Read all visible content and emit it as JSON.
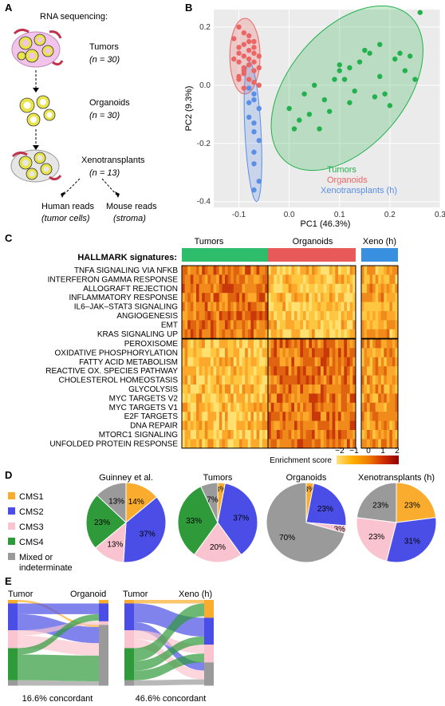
{
  "panels": {
    "A": {
      "letter": "A",
      "title": "RNA sequencing:",
      "stages": [
        {
          "name": "Tumors",
          "n": "(n = 30)"
        },
        {
          "name": "Organoids",
          "n": "(n = 30)"
        },
        {
          "name": "Xenotransplants",
          "n": "(n = 13)"
        }
      ],
      "reads": [
        {
          "name": "Human reads",
          "sub": "(tumor cells)"
        },
        {
          "name": "Mouse reads",
          "sub": "(stroma)"
        }
      ]
    },
    "B": {
      "letter": "B"
    },
    "C": {
      "letter": "C",
      "heading": "HALLMARK signatures:",
      "groups": [
        "Tumors",
        "Organoids",
        "Xeno (h)"
      ],
      "signatures_top": [
        "TNFA SIGNALING VIA NFKB",
        "INTERFERON GAMMA RESPONSE",
        "ALLOGRAFT REJECTION",
        "INFLAMMATORY RESPONSE",
        "IL6–JAK–STAT3 SIGNALING",
        "ANGIOGENESIS",
        "EMT",
        "KRAS SIGNALING UP"
      ],
      "signatures_bottom": [
        "PEROXISOME",
        "OXIDATIVE PHOSPHORYLATION",
        "FATTY ACID METABOLISM",
        "REACTIVE OX. SPECIES PATHWAY",
        "CHOLESTEROL HOMEOSTASIS",
        "GLYCOLYSIS",
        "MYC TARGETS V2",
        "MYC TARGETS V1",
        "E2F TARGETS",
        "DNA REPAIR",
        "MTORC1 SIGNALING",
        "UNFOLDED PROTEIN RESPONSE"
      ],
      "colorbar": {
        "label": "Enrichment score",
        "ticks": [
          "−2",
          "−1",
          "0",
          "1",
          "2"
        ],
        "colors": [
          "#ffe080",
          "#ffb000",
          "#f08000",
          "#d03000",
          "#900000"
        ]
      },
      "group_colors": [
        "#2ebd6b",
        "#e85a5a",
        "#3a90e0"
      ]
    },
    "D": {
      "letter": "D",
      "legend": [
        "CMS1",
        "CMS2",
        "CMS3",
        "CMS4",
        "Mixed or",
        "indeterminate"
      ]
    },
    "E": {
      "letter": "E",
      "left": {
        "a": "Tumor",
        "b": "Organoid",
        "caption": "16.6% concordant"
      },
      "right": {
        "a": "Tumor",
        "b": "Xeno (h)",
        "caption": "46.6% concordant"
      }
    }
  },
  "colors": {
    "cms1": "#f9ac2e",
    "cms2": "#4b4ee6",
    "cms3": "#f9c4cf",
    "cms4": "#2f9a3a",
    "mixed": "#9a9a9a",
    "tumors": "#22b14c",
    "organoids": "#ec6565",
    "xeno": "#5b8ee6"
  },
  "chart_data": [
    {
      "type": "scatter",
      "xlabel": "PC1 (46.3%)",
      "ylabel": "PC2 (9.3%)",
      "xlim": [
        -0.15,
        0.3
      ],
      "ylim": [
        -0.42,
        0.26
      ],
      "xticks": [
        "-0.1",
        "0.0",
        "0.1",
        "0.2",
        "0.3"
      ],
      "yticks": [
        "0.2",
        "0.0",
        "-0.2",
        "-0.4"
      ],
      "xtick_values": [
        -0.1,
        0.0,
        0.1,
        0.2,
        0.3
      ],
      "ytick_values": [
        0.2,
        0.0,
        -0.2,
        -0.4
      ],
      "grid": true,
      "legend_position": "bottom-right",
      "series": [
        {
          "name": "Tumors",
          "color": "#22b14c",
          "x": [
            0.26,
            0.22,
            0.23,
            0.21,
            0.24,
            0.19,
            0.2,
            0.18,
            0.15,
            0.14,
            0.12,
            0.1,
            0.11,
            0.13,
            0.16,
            0.09,
            0.07,
            0.05,
            0.03,
            0.0,
            0.02,
            0.06,
            0.08,
            0.17,
            0.25,
            0.18,
            0.04,
            0.12,
            0.1,
            0.01
          ],
          "y": [
            0.25,
            0.11,
            0.05,
            0.09,
            0.1,
            -0.03,
            -0.07,
            0.14,
            0.12,
            0.08,
            0.06,
            0.07,
            0.02,
            -0.02,
            0.11,
            0.02,
            -0.05,
            0.0,
            -0.03,
            -0.08,
            -0.12,
            -0.15,
            -0.09,
            -0.04,
            0.02,
            0.03,
            -0.1,
            -0.06,
            0.05,
            -0.15
          ]
        },
        {
          "name": "Organoids",
          "color": "#ec6565",
          "x": [
            -0.1,
            -0.09,
            -0.08,
            -0.07,
            -0.09,
            -0.1,
            -0.08,
            -0.07,
            -0.09,
            -0.11,
            -0.1,
            -0.08,
            -0.06,
            -0.07,
            -0.09,
            -0.1,
            -0.08,
            -0.07,
            -0.06,
            -0.09,
            -0.11,
            -0.1,
            -0.08,
            -0.07,
            -0.09,
            -0.1,
            -0.08,
            -0.06,
            -0.09,
            -0.07
          ],
          "y": [
            0.2,
            0.18,
            0.17,
            0.15,
            0.14,
            0.13,
            0.12,
            0.11,
            0.1,
            0.09,
            0.08,
            0.07,
            0.06,
            0.05,
            0.04,
            0.03,
            0.02,
            0.01,
            0.0,
            -0.01,
            0.16,
            0.11,
            0.09,
            0.13,
            0.06,
            0.02,
            0.15,
            0.1,
            0.05,
            0.08
          ]
        },
        {
          "name": "Xenotransplants (h)",
          "color": "#5b8ee6",
          "x": [
            -0.08,
            -0.07,
            -0.07,
            -0.06,
            -0.08,
            -0.07,
            -0.07,
            -0.06,
            -0.07,
            -0.07,
            -0.06,
            -0.07,
            -0.08
          ],
          "y": [
            -0.01,
            -0.03,
            -0.05,
            -0.08,
            -0.11,
            -0.13,
            -0.16,
            -0.19,
            -0.23,
            -0.27,
            -0.33,
            -0.36,
            -0.06
          ]
        }
      ]
    },
    {
      "type": "pie",
      "title": "Guinney et al.",
      "categories": [
        "CMS1",
        "CMS2",
        "CMS3",
        "CMS4",
        "Mixed or indeterminate"
      ],
      "values": [
        14,
        37,
        13,
        23,
        13
      ],
      "labels": [
        "14%",
        "37%",
        "13%",
        "23%",
        "13%"
      ]
    },
    {
      "type": "pie",
      "title": "Tumors",
      "categories": [
        "CMS1",
        "CMS2",
        "CMS3",
        "CMS4",
        "Mixed or indeterminate"
      ],
      "values": [
        3,
        37,
        20,
        33,
        7
      ],
      "labels": [
        "3%",
        "37%",
        "20%",
        "33%",
        "7%"
      ]
    },
    {
      "type": "pie",
      "title": "Organoids",
      "categories": [
        "CMS1",
        "CMS2",
        "CMS3",
        "CMS4",
        "Mixed or indeterminate"
      ],
      "values": [
        3,
        23,
        3,
        0,
        70
      ],
      "labels": [
        "3%",
        "23%",
        "3%",
        "",
        "70%"
      ]
    },
    {
      "type": "pie",
      "title": "Xenotransplants (h)",
      "categories": [
        "CMS1",
        "CMS2",
        "CMS3",
        "CMS4",
        "Mixed or indeterminate"
      ],
      "values": [
        23,
        31,
        23,
        0,
        23
      ],
      "labels": [
        "23%",
        "31%",
        "23%",
        "",
        "23%"
      ]
    }
  ]
}
